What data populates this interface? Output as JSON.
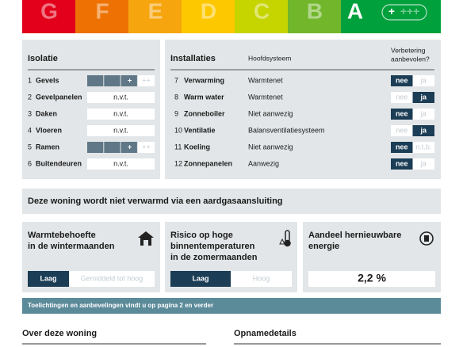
{
  "energy_label": {
    "classes": [
      "G",
      "F",
      "E",
      "D",
      "C",
      "B",
      "A"
    ],
    "colors": [
      "#e2001a",
      "#ee7203",
      "#f6a50e",
      "#fdc800",
      "#c6d400",
      "#72b62b",
      "#00a03c"
    ],
    "current": 6,
    "plus_active": "+",
    "plus_inactive": "+++"
  },
  "isolatie": {
    "title": "Isolatie",
    "rows": [
      {
        "number": "1",
        "name": "Gevels",
        "rating": {
          "active": "+",
          "next": "++"
        }
      },
      {
        "number": "2",
        "name": "Gevelpanelen",
        "value": "n.v.t."
      },
      {
        "number": "3",
        "name": "Daken",
        "value": "n.v.t."
      },
      {
        "number": "4",
        "name": "Vloeren",
        "value": "n.v.t."
      },
      {
        "number": "5",
        "name": "Ramen",
        "rating": {
          "active": "+",
          "next": "++"
        }
      },
      {
        "number": "6",
        "name": "Buitendeuren",
        "value": "n.v.t."
      }
    ]
  },
  "installaties": {
    "title": "Installaties",
    "system_header": "Hoofdsysteem",
    "advice_header": [
      "Verbetering",
      "aanbevolen?"
    ],
    "rows": [
      {
        "number": "7",
        "name": "Verwarming",
        "system": "Warmtenet",
        "options": [
          "nee",
          "ja"
        ],
        "selected": 0
      },
      {
        "number": "8",
        "name": "Warm water",
        "system": "Warmtenet",
        "options": [
          "nee",
          "ja"
        ],
        "selected": 1
      },
      {
        "number": "9",
        "name": "Zonneboiler",
        "system": "Niet aanwezig",
        "options": [
          "nee",
          "ja"
        ],
        "selected": 0
      },
      {
        "number": "10",
        "name": "Ventilatie",
        "system": "Balansventilatiesysteem",
        "options": [
          "nee",
          "ja"
        ],
        "selected": 1
      },
      {
        "number": "11",
        "name": "Koeling",
        "system": "Niet aanwezig",
        "options": [
          "nee",
          "n.t.b."
        ],
        "selected": 0
      },
      {
        "number": "12",
        "name": "Zonnepanelen",
        "system": "Aanwezig",
        "options": [
          "nee",
          "ja"
        ],
        "selected": 0
      }
    ]
  },
  "banner": "Deze woning wordt niet verwarmd via een aardgasaansluiting",
  "cards": [
    {
      "title_lines": [
        "Warmtebehoefte",
        "in de wintermaanden"
      ],
      "options": [
        "Laag",
        "Gemiddeld tot hoog"
      ],
      "selected": 0
    },
    {
      "title_lines": [
        "Risico op hoge",
        "binnentemperaturen",
        "in de zomermaanden"
      ],
      "options": [
        "Laag",
        "Hoog"
      ],
      "selected": 0
    },
    {
      "title_lines": [
        "Aandeel hernieuwbare",
        "energie"
      ],
      "value": "2,2 %"
    }
  ],
  "note": "Toelichtingen en aanbevelingen vindt u op pagina 2 en verder",
  "sections": [
    "Over deze woning",
    "Opnamedetails"
  ]
}
